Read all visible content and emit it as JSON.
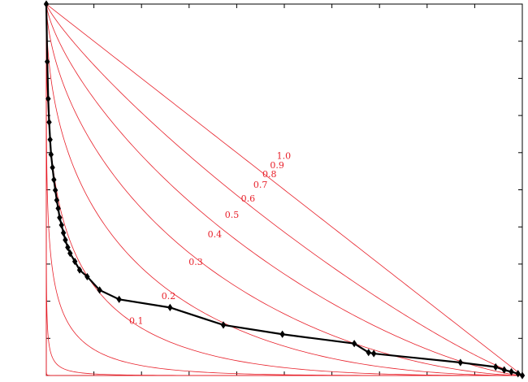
{
  "chart_data": {
    "type": "line",
    "title": "",
    "xlabel": "",
    "ylabel": "",
    "xlim": [
      0,
      1
    ],
    "ylim": [
      0,
      1
    ],
    "grid": false,
    "colors": {
      "contour": "#e8202a",
      "series": "#000000",
      "frame": "#000000"
    },
    "contour_labels": [
      "0.1",
      "0.2",
      "0.3",
      "0.4",
      "0.5",
      "0.6",
      "0.7",
      "0.8",
      "0.9",
      "1.0"
    ],
    "contour_exponents": [
      0.04,
      0.11,
      0.19,
      0.28,
      0.38,
      0.49,
      0.6,
      0.72,
      0.85,
      1.0
    ],
    "contour_label_positions": [
      [
        0.174,
        0.139
      ],
      [
        0.242,
        0.206
      ],
      [
        0.299,
        0.298
      ],
      [
        0.339,
        0.372
      ],
      [
        0.375,
        0.425
      ],
      [
        0.409,
        0.468
      ],
      [
        0.435,
        0.505
      ],
      [
        0.454,
        0.534
      ],
      [
        0.47,
        0.558
      ],
      [
        0.484,
        0.583
      ]
    ],
    "series": [
      {
        "marker": "diamond",
        "x": [
          0.0,
          0.002,
          0.004,
          0.006,
          0.008,
          0.01,
          0.013,
          0.016,
          0.019,
          0.022,
          0.025,
          0.028,
          0.032,
          0.036,
          0.04,
          0.045,
          0.05,
          0.06,
          0.07,
          0.086,
          0.112,
          0.153,
          0.26,
          0.372,
          0.496,
          0.647,
          0.677,
          0.688,
          0.87,
          0.944,
          0.962,
          0.977,
          0.991,
          1.0
        ],
        "y": [
          1.0,
          0.845,
          0.745,
          0.682,
          0.635,
          0.595,
          0.56,
          0.527,
          0.499,
          0.472,
          0.45,
          0.425,
          0.405,
          0.384,
          0.365,
          0.345,
          0.329,
          0.307,
          0.284,
          0.266,
          0.23,
          0.205,
          0.183,
          0.136,
          0.111,
          0.086,
          0.062,
          0.059,
          0.035,
          0.023,
          0.015,
          0.01,
          0.005,
          0.0
        ]
      }
    ]
  }
}
